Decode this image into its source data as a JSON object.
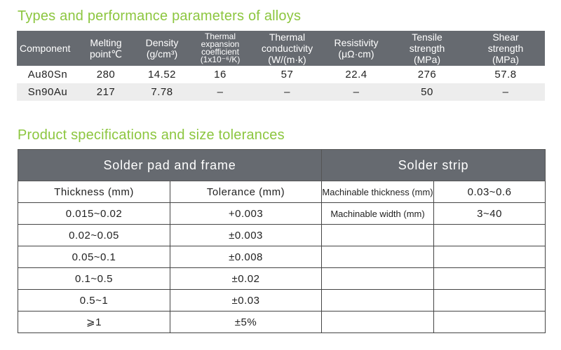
{
  "section1": {
    "title": "Types and performance parameters of alloys",
    "headers": {
      "component": "Component",
      "melting": [
        "Melting",
        "point℃"
      ],
      "density": [
        "Density",
        "(g/cm³)"
      ],
      "thermal_exp": [
        "Thermal",
        "expansion",
        "coefficient",
        "(1x10⁻⁶/K)"
      ],
      "thermal_cond": [
        "Thermal",
        "conductivity",
        "(W/(m·k)"
      ],
      "resistivity": [
        "Resistivity",
        "(μΩ·cm)"
      ],
      "tensile": [
        "Tensile",
        "strength",
        "(MPa)"
      ],
      "shear": [
        "Shear",
        "strength",
        "(MPa)"
      ]
    },
    "rows": [
      {
        "component": "Au80Sn",
        "melting": "280",
        "density": "14.52",
        "thermal_exp": "16",
        "thermal_cond": "57",
        "resistivity": "22.4",
        "tensile": "276",
        "shear": "57.8"
      },
      {
        "component": "Sn90Au",
        "melting": "217",
        "density": "7.78",
        "thermal_exp": "–",
        "thermal_cond": "–",
        "resistivity": "–",
        "tensile": "50",
        "shear": "–"
      }
    ]
  },
  "section2": {
    "title": "Product specifications and size tolerances",
    "group_pad": "Solder pad and frame",
    "group_strip": "Solder strip",
    "col_thickness": "Thickness (mm)",
    "col_tolerance": "Tolerance (mm)",
    "rows": [
      {
        "thickness": "0.015~0.02",
        "tolerance": "+0.003"
      },
      {
        "thickness": "0.02~0.05",
        "tolerance": "±0.003"
      },
      {
        "thickness": "0.05~0.1",
        "tolerance": "±0.008"
      },
      {
        "thickness": "0.1~0.5",
        "tolerance": "±0.02"
      },
      {
        "thickness": "0.5~1",
        "tolerance": "±0.03"
      },
      {
        "thickness": "⩾1",
        "tolerance": "±5%"
      }
    ],
    "strip_rows": [
      {
        "label": "Machinable thickness (mm)",
        "value": "0.03~0.6"
      },
      {
        "label": "Machinable width (mm)",
        "value": "3~40"
      }
    ]
  }
}
